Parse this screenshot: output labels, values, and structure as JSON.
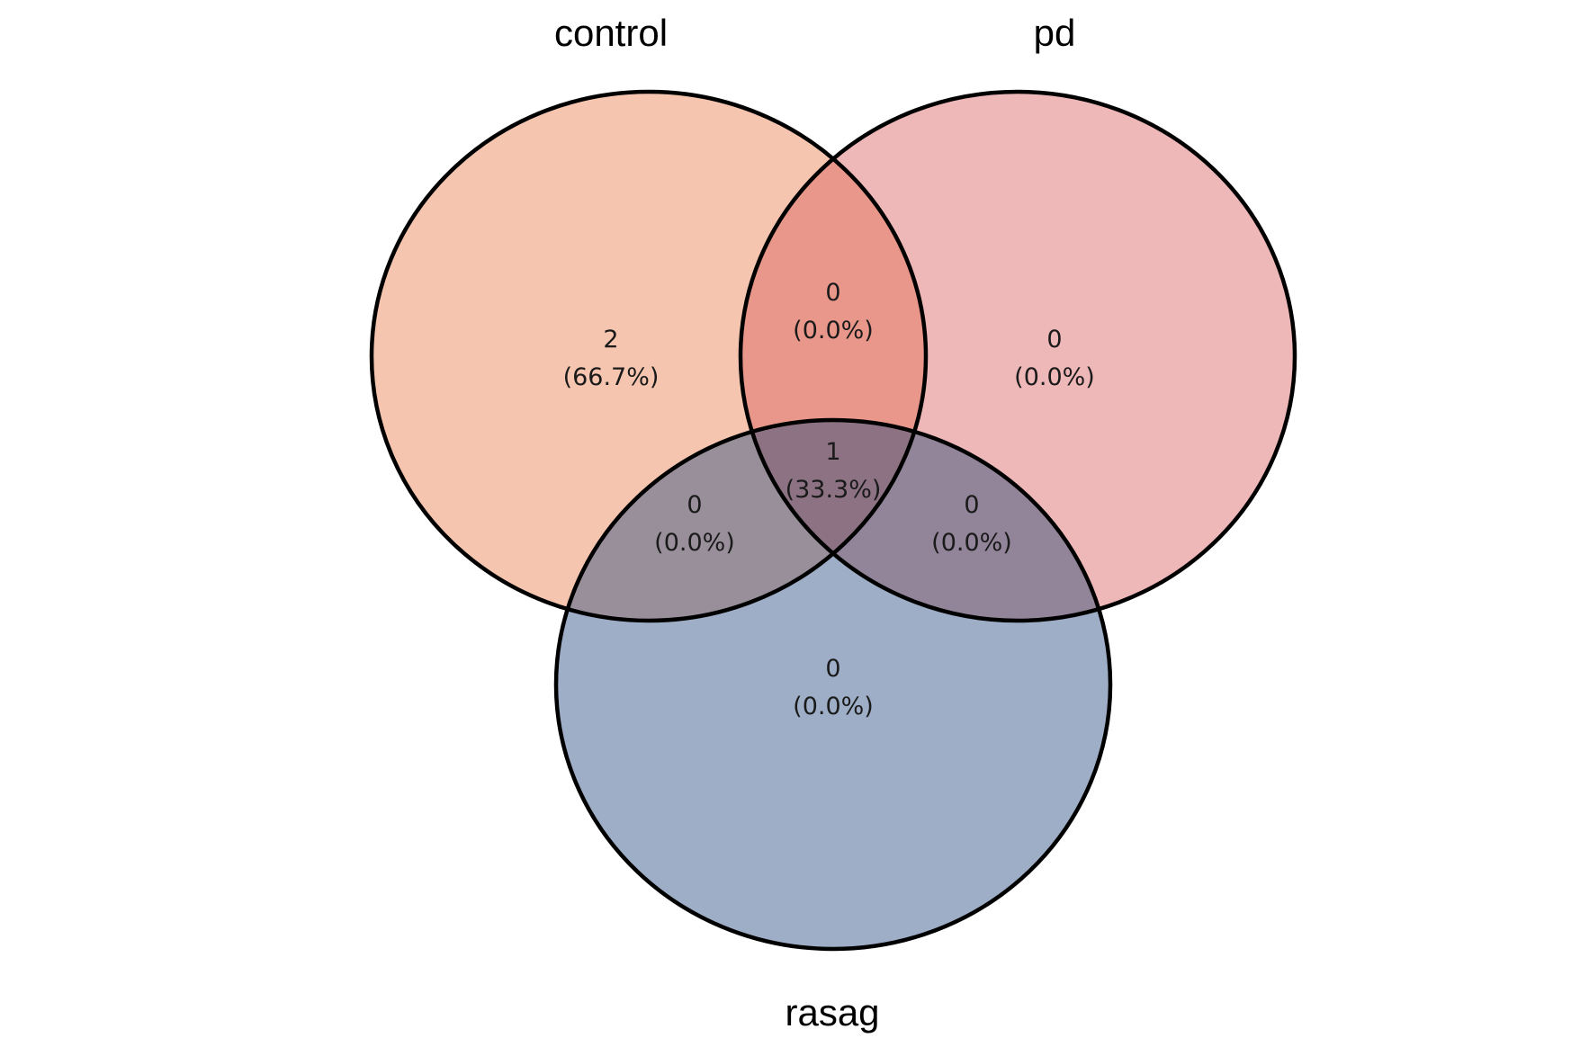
{
  "sets": [
    {
      "key": "control",
      "label": "control",
      "color": "#f5c5b0"
    },
    {
      "key": "pd",
      "label": "pd",
      "color": "#eeb7b8"
    },
    {
      "key": "rasag",
      "label": "rasag",
      "color": "#9eaec7"
    }
  ],
  "intersection_colors": {
    "control_pd": "#e8978a",
    "control_rasag": "#998f9b",
    "pd_rasag": "#928499",
    "all": "#8c7282"
  },
  "regions": {
    "control_only": {
      "count": "2",
      "percent": "(66.7%)"
    },
    "pd_only": {
      "count": "0",
      "percent": "(0.0%)"
    },
    "rasag_only": {
      "count": "0",
      "percent": "(0.0%)"
    },
    "control_pd": {
      "count": "0",
      "percent": "(0.0%)"
    },
    "control_rasag": {
      "count": "0",
      "percent": "(0.0%)"
    },
    "pd_rasag": {
      "count": "0",
      "percent": "(0.0%)"
    },
    "all": {
      "count": "1",
      "percent": "(33.3%)"
    }
  }
}
